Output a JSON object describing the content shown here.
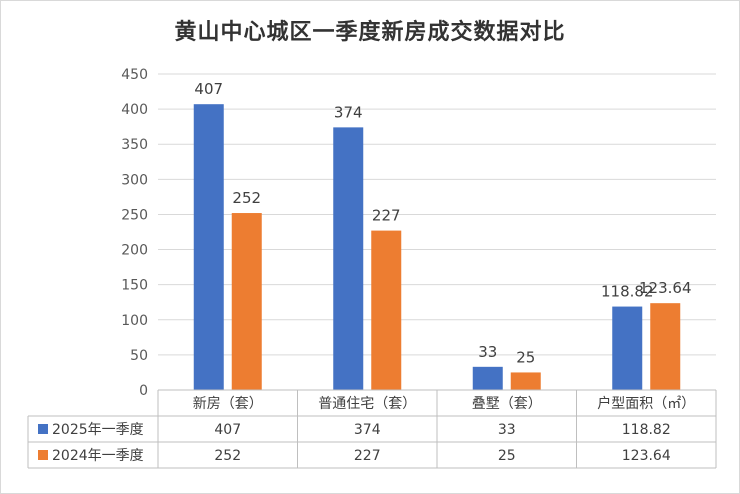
{
  "title": "黄山中心城区一季度新房成交数据对比",
  "chart_data": {
    "type": "bar",
    "title": "黄山中心城区一季度新房成交数据对比",
    "categories": [
      "新房（套）",
      "普通住宅（套）",
      "叠墅（套）",
      "户型面积（㎡）"
    ],
    "series": [
      {
        "name": "2025年一季度",
        "color": "#4472C4",
        "values": [
          407,
          374,
          33,
          118.82
        ],
        "labels": [
          "407",
          "374",
          "33",
          "118.82"
        ]
      },
      {
        "name": "2024年一季度",
        "color": "#ED7D31",
        "values": [
          252,
          227,
          25,
          123.64
        ],
        "labels": [
          "252",
          "227",
          "25",
          "123.64"
        ]
      }
    ],
    "ylim": [
      0,
      450
    ],
    "yticks": [
      "0",
      "50",
      "100",
      "150",
      "200",
      "250",
      "300",
      "350",
      "400",
      "450"
    ],
    "grid": true,
    "legend": "data-table",
    "data_table": true
  }
}
